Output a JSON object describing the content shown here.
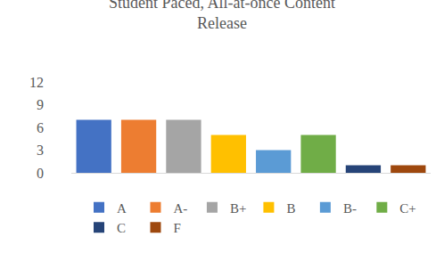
{
  "chart_data": {
    "type": "bar",
    "title": "Student Paced, All-at-once Content Release",
    "categories": [
      "A",
      "A-",
      "B+",
      "B",
      "B-",
      "C+",
      "C",
      "F"
    ],
    "values": [
      7,
      7,
      7,
      5,
      3,
      5,
      1,
      1
    ],
    "colors": [
      "#4472c4",
      "#ed7d31",
      "#a5a5a5",
      "#ffc000",
      "#5b9bd5",
      "#70ad47",
      "#264478",
      "#9e480e"
    ],
    "ylim": [
      0,
      12
    ],
    "yticks": [
      0,
      3,
      6,
      9,
      12
    ],
    "grid": false,
    "legend": "bottom",
    "tick_labels": "y"
  }
}
